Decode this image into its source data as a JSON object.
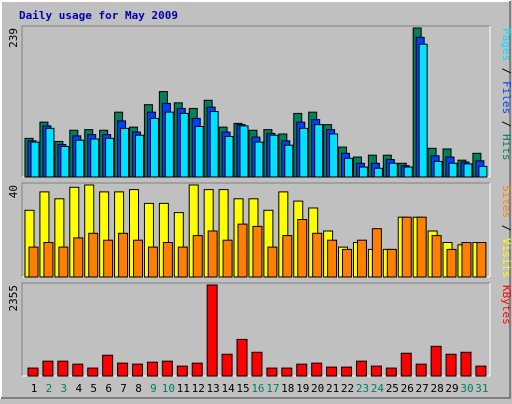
{
  "title": "Daily usage for May 2009",
  "chart_data": [
    {
      "type": "bar",
      "series": [
        {
          "name": "Hits",
          "color": "#00805c",
          "values": [
            62,
            88,
            57,
            75,
            76,
            75,
            104,
            80,
            116,
            137,
            119,
            110,
            123,
            80,
            86,
            75,
            76,
            69,
            102,
            104,
            84,
            48,
            32,
            35,
            35,
            22,
            239,
            46,
            45,
            27,
            38
          ]
        },
        {
          "name": "Files",
          "color": "#0040ff",
          "values": [
            58,
            82,
            52,
            66,
            68,
            68,
            90,
            72,
            104,
            118,
            110,
            94,
            112,
            72,
            84,
            64,
            70,
            58,
            88,
            92,
            76,
            38,
            22,
            22,
            28,
            18,
            224,
            34,
            32,
            24,
            26
          ]
        },
        {
          "name": "Pages",
          "color": "#00e0ff",
          "values": [
            56,
            78,
            49,
            59,
            61,
            62,
            78,
            67,
            94,
            104,
            102,
            81,
            105,
            65,
            82,
            56,
            67,
            51,
            78,
            84,
            69,
            30,
            16,
            14,
            22,
            16,
            213,
            25,
            22,
            21,
            17
          ]
        }
      ],
      "ylim": [
        0,
        239
      ],
      "yticks": [
        239
      ]
    },
    {
      "type": "bar",
      "series": [
        {
          "name": "Visits",
          "color": "#ffff00",
          "values": [
            29,
            37,
            34,
            39,
            40,
            37,
            37,
            38,
            32,
            32,
            28,
            40,
            38,
            38,
            34,
            34,
            29,
            37,
            33,
            30,
            20,
            13,
            15,
            12,
            12,
            26,
            26,
            20,
            15,
            14,
            15
          ]
        },
        {
          "name": "Sites",
          "color": "#ff8000",
          "values": [
            13,
            15,
            13,
            17,
            19,
            16,
            19,
            16,
            13,
            15,
            13,
            18,
            20,
            16,
            23,
            22,
            13,
            18,
            25,
            19,
            16,
            12,
            16,
            21,
            12,
            26,
            26,
            18,
            12,
            15,
            15
          ]
        }
      ],
      "ylim": [
        0,
        40
      ],
      "yticks": [
        40
      ]
    },
    {
      "type": "bar",
      "categories": [
        "1",
        "2",
        "3",
        "4",
        "5",
        "6",
        "7",
        "8",
        "9",
        "10",
        "11",
        "12",
        "13",
        "14",
        "15",
        "16",
        "17",
        "18",
        "19",
        "20",
        "21",
        "22",
        "23",
        "24",
        "25",
        "26",
        "27",
        "28",
        "29",
        "30",
        "31"
      ],
      "category_colors": [
        "#000000",
        "#00805c",
        "#00805c",
        "#000000",
        "#000000",
        "#000000",
        "#000000",
        "#000000",
        "#00805c",
        "#00805c",
        "#000000",
        "#000000",
        "#000000",
        "#000000",
        "#000000",
        "#00805c",
        "#00805c",
        "#000000",
        "#000000",
        "#000000",
        "#000000",
        "#000000",
        "#00805c",
        "#00805c",
        "#000000",
        "#000000",
        "#000000",
        "#000000",
        "#000000",
        "#00805c",
        "#00805c"
      ],
      "series": [
        {
          "name": "KBytes",
          "color": "#ff0000",
          "values": [
            205,
            384,
            384,
            307,
            205,
            537,
            333,
            307,
            358,
            384,
            256,
            333,
            2355,
            563,
            947,
            614,
            205,
            205,
            307,
            333,
            230,
            230,
            384,
            256,
            205,
            589,
            307,
            768,
            563,
            614,
            256
          ]
        }
      ],
      "ylim": [
        0,
        2355
      ],
      "yticks": [
        2355
      ]
    }
  ]
}
